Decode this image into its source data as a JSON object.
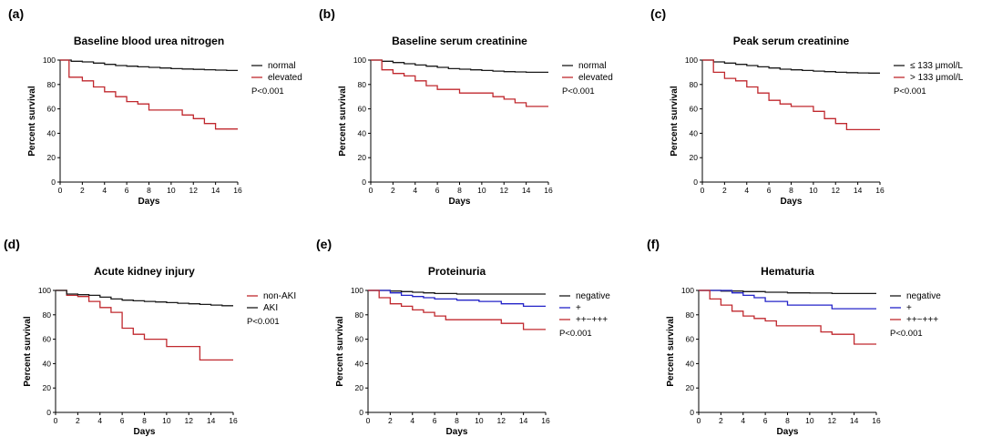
{
  "colors": {
    "black": "#1a1a1a",
    "red": "#c0282e",
    "blue": "#2323c8"
  },
  "chart_data": [
    {
      "panel": "(a)",
      "type": "line",
      "title": "Baseline blood urea nitrogen",
      "xlabel": "Days",
      "ylabel": "Percent survival",
      "xlim": [
        0,
        16
      ],
      "ylim": [
        0,
        100
      ],
      "xticks": [
        0,
        2,
        4,
        6,
        8,
        10,
        12,
        14,
        16
      ],
      "yticks": [
        0,
        20,
        40,
        60,
        80,
        100
      ],
      "annotation": "P<0.001",
      "series": [
        {
          "name": "normal",
          "color": "black",
          "step": true,
          "x": [
            0,
            1,
            2,
            3,
            4,
            5,
            6,
            7,
            8,
            9,
            10,
            11,
            12,
            13,
            14,
            15,
            16
          ],
          "y": [
            100,
            99,
            98.5,
            97.5,
            96.5,
            95.5,
            95,
            94.5,
            94,
            93.5,
            93,
            92.7,
            92.4,
            92.1,
            91.8,
            91.5,
            91.5
          ]
        },
        {
          "name": "elevated",
          "color": "red",
          "step": true,
          "x": [
            0,
            0.8,
            2,
            3,
            4,
            5,
            6,
            7,
            8,
            10,
            11,
            12,
            13,
            14,
            16
          ],
          "y": [
            100,
            86,
            83,
            78,
            74,
            70,
            66,
            64,
            59,
            59,
            55,
            52,
            48,
            43.5,
            43.5
          ]
        }
      ]
    },
    {
      "panel": "(b)",
      "type": "line",
      "title": "Baseline serum creatinine",
      "xlabel": "Days",
      "ylabel": "Percent survival",
      "xlim": [
        0,
        16
      ],
      "ylim": [
        0,
        100
      ],
      "xticks": [
        0,
        2,
        4,
        6,
        8,
        10,
        12,
        14,
        16
      ],
      "yticks": [
        0,
        20,
        40,
        60,
        80,
        100
      ],
      "annotation": "P<0.001",
      "series": [
        {
          "name": "normal",
          "color": "black",
          "step": true,
          "x": [
            0,
            1,
            2,
            3,
            4,
            5,
            6,
            7,
            8,
            9,
            10,
            11,
            12,
            13,
            14,
            15,
            16
          ],
          "y": [
            100,
            99,
            98,
            97,
            96,
            95,
            94,
            93,
            92.5,
            92,
            91.5,
            91,
            90.5,
            90.3,
            90,
            90,
            90
          ]
        },
        {
          "name": "elevated",
          "color": "red",
          "step": true,
          "x": [
            0,
            1,
            2,
            3,
            4,
            5,
            6,
            8,
            10,
            11,
            12,
            13,
            14,
            16
          ],
          "y": [
            100,
            92,
            89,
            87,
            83,
            79,
            76,
            73,
            73,
            70,
            68,
            65,
            62,
            62
          ]
        }
      ]
    },
    {
      "panel": "(c)",
      "type": "line",
      "title": "Peak serum creatinine",
      "xlabel": "Days",
      "ylabel": "Percent survival",
      "xlim": [
        0,
        16
      ],
      "ylim": [
        0,
        100
      ],
      "xticks": [
        0,
        2,
        4,
        6,
        8,
        10,
        12,
        14,
        16
      ],
      "yticks": [
        0,
        20,
        40,
        60,
        80,
        100
      ],
      "annotation": "P<0.001",
      "series": [
        {
          "name": "≤ 133 μmol/L",
          "color": "black",
          "step": true,
          "x": [
            0,
            1,
            2,
            3,
            4,
            5,
            6,
            7,
            8,
            9,
            10,
            11,
            12,
            13,
            14,
            15,
            16
          ],
          "y": [
            100,
            98.5,
            97.5,
            96.5,
            95.5,
            94.5,
            93.5,
            92.5,
            92,
            91.5,
            91,
            90.5,
            90,
            89.7,
            89.5,
            89.3,
            89.3
          ]
        },
        {
          "name": "> 133 μmol/L",
          "color": "red",
          "step": true,
          "x": [
            0,
            1,
            2,
            3,
            4,
            5,
            6,
            7,
            8,
            10,
            11,
            12,
            13,
            16
          ],
          "y": [
            100,
            90,
            85,
            83,
            78,
            73,
            67,
            64,
            62,
            58,
            52,
            48,
            43,
            43
          ]
        }
      ]
    },
    {
      "panel": "(d)",
      "type": "line",
      "title": "Acute kidney injury",
      "xlabel": "Days",
      "ylabel": "Percent survival",
      "xlim": [
        0,
        16
      ],
      "ylim": [
        0,
        100
      ],
      "xticks": [
        0,
        2,
        4,
        6,
        8,
        10,
        12,
        14,
        16
      ],
      "yticks": [
        0,
        20,
        40,
        60,
        80,
        100
      ],
      "annotation": "P<0.001",
      "series": [
        {
          "name": "non-AKI",
          "color": "red",
          "step": true,
          "x": [
            0,
            1,
            2,
            3,
            4,
            5,
            6,
            7,
            8,
            10,
            13,
            16
          ],
          "y": [
            100,
            96,
            95,
            91,
            86,
            82,
            69,
            64,
            60,
            54,
            43,
            43
          ]
        },
        {
          "name": "AKI",
          "color": "black",
          "step": true,
          "x": [
            0,
            1,
            2,
            3,
            4,
            5,
            6,
            7,
            8,
            9,
            10,
            11,
            12,
            13,
            14,
            15,
            16
          ],
          "y": [
            100,
            97,
            96.5,
            96,
            94.5,
            93,
            92,
            91.5,
            91,
            90.5,
            90,
            89.5,
            89,
            88.5,
            88,
            87.5,
            87.5
          ]
        }
      ]
    },
    {
      "panel": "(e)",
      "type": "line",
      "title": "Proteinuria",
      "xlabel": "Days",
      "ylabel": "Percent survival",
      "xlim": [
        0,
        16
      ],
      "ylim": [
        0,
        100
      ],
      "xticks": [
        0,
        2,
        4,
        6,
        8,
        10,
        12,
        14,
        16
      ],
      "yticks": [
        0,
        20,
        40,
        60,
        80,
        100
      ],
      "annotation": "P<0.001",
      "series": [
        {
          "name": "negative",
          "color": "black",
          "step": true,
          "x": [
            0,
            2,
            3,
            4,
            5,
            6,
            8,
            10,
            12,
            16
          ],
          "y": [
            100,
            99.5,
            99,
            98.5,
            98,
            97.5,
            97,
            97,
            97,
            97
          ]
        },
        {
          "name": "+",
          "color": "blue",
          "step": true,
          "x": [
            0,
            2,
            3,
            4,
            5,
            6,
            8,
            10,
            12,
            14,
            16
          ],
          "y": [
            100,
            98,
            96,
            95,
            94,
            93,
            92,
            91,
            89,
            87,
            87
          ]
        },
        {
          "name": "++~+++",
          "color": "red",
          "step": true,
          "x": [
            0,
            1,
            2,
            3,
            4,
            5,
            6,
            7,
            12,
            14,
            16
          ],
          "y": [
            100,
            94,
            89,
            87,
            84,
            82,
            79,
            76,
            73,
            68,
            68
          ]
        }
      ]
    },
    {
      "panel": "(f)",
      "type": "line",
      "title": "Hematuria",
      "xlabel": "Days",
      "ylabel": "Percent survival",
      "xlim": [
        0,
        16
      ],
      "ylim": [
        0,
        100
      ],
      "xticks": [
        0,
        2,
        4,
        6,
        8,
        10,
        12,
        14,
        16
      ],
      "yticks": [
        0,
        20,
        40,
        60,
        80,
        100
      ],
      "annotation": "P<0.001",
      "series": [
        {
          "name": "negative",
          "color": "black",
          "step": true,
          "x": [
            0,
            2,
            4,
            6,
            8,
            10,
            12,
            16
          ],
          "y": [
            100,
            99.5,
            99,
            98.5,
            98,
            97.8,
            97.5,
            97.5
          ]
        },
        {
          "name": "+",
          "color": "blue",
          "step": true,
          "x": [
            0,
            3,
            4,
            5,
            6,
            8,
            12,
            16
          ],
          "y": [
            100,
            98,
            96,
            94,
            91,
            88,
            85,
            85
          ]
        },
        {
          "name": "++~+++",
          "color": "red",
          "step": true,
          "x": [
            0,
            1,
            2,
            3,
            4,
            5,
            6,
            7,
            10,
            11,
            12,
            14,
            16
          ],
          "y": [
            100,
            93,
            88,
            83,
            79,
            77,
            75,
            71,
            71,
            66,
            64,
            56,
            56
          ]
        }
      ]
    }
  ]
}
